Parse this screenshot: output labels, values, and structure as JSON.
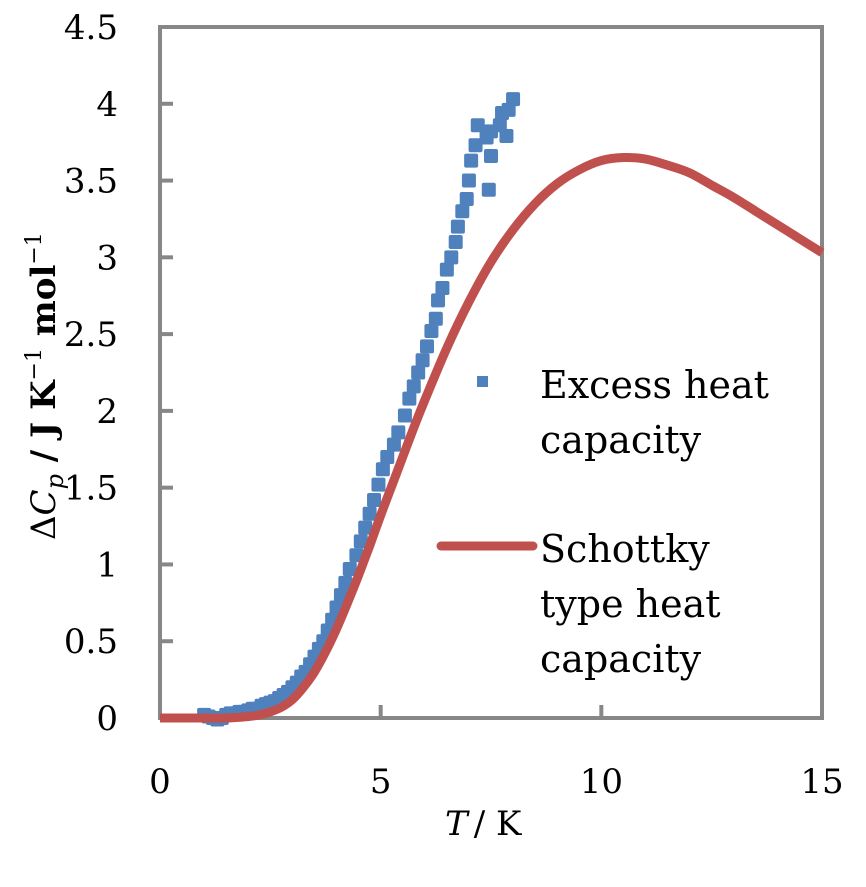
{
  "chart_data": {
    "type": "scatter",
    "title": "",
    "xlabel": "T / K",
    "xlabel_italic_part": "T",
    "xlabel_unit_part": "/ K",
    "ylabel": "ΔC_p / J K⁻¹ mol⁻¹",
    "ylabel_parts": {
      "delta": "Δ",
      "symbol": "C",
      "subscript": "p",
      "unit1": " / J K",
      "sup1": "−1",
      "unit2": " mol",
      "sup2": "−1"
    },
    "xlim": [
      0,
      15
    ],
    "ylim": [
      0,
      4.5
    ],
    "xticks": [
      0,
      5,
      10,
      15
    ],
    "xtick_labels": [
      "0",
      "5",
      "10",
      "15"
    ],
    "yticks": [
      0,
      0.5,
      1,
      1.5,
      2,
      2.5,
      3,
      3.5,
      4,
      4.5
    ],
    "ytick_labels": [
      "0",
      "0.5",
      "1",
      "1.5",
      "2",
      "2.5",
      "3",
      "3.5",
      "4",
      "4.5"
    ],
    "grid": false,
    "legend_position": "center-right",
    "series": [
      {
        "name": "Excess heat capacity",
        "legend_lines": [
          "Excess heat",
          "capacity"
        ],
        "kind": "scatter",
        "marker": "square",
        "color": "#4F81BD",
        "points": [
          [
            1.0,
            0.02
          ],
          [
            1.1,
            0.01
          ],
          [
            1.2,
            0.0
          ],
          [
            1.3,
            -0.01
          ],
          [
            1.4,
            0.0
          ],
          [
            1.5,
            0.02
          ],
          [
            1.6,
            0.03
          ],
          [
            1.7,
            0.03
          ],
          [
            1.8,
            0.04
          ],
          [
            1.9,
            0.04
          ],
          [
            2.0,
            0.05
          ],
          [
            2.1,
            0.06
          ],
          [
            2.2,
            0.06
          ],
          [
            2.3,
            0.08
          ],
          [
            2.4,
            0.09
          ],
          [
            2.5,
            0.1
          ],
          [
            2.6,
            0.11
          ],
          [
            2.7,
            0.13
          ],
          [
            2.8,
            0.15
          ],
          [
            2.9,
            0.17
          ],
          [
            3.0,
            0.2
          ],
          [
            3.1,
            0.23
          ],
          [
            3.2,
            0.27
          ],
          [
            3.3,
            0.3
          ],
          [
            3.4,
            0.35
          ],
          [
            3.5,
            0.4
          ],
          [
            3.6,
            0.45
          ],
          [
            3.7,
            0.5
          ],
          [
            3.8,
            0.57
          ],
          [
            3.9,
            0.64
          ],
          [
            4.0,
            0.72
          ],
          [
            4.1,
            0.8
          ],
          [
            4.2,
            0.88
          ],
          [
            4.3,
            0.97
          ],
          [
            4.45,
            1.06
          ],
          [
            4.55,
            1.15
          ],
          [
            4.65,
            1.24
          ],
          [
            4.75,
            1.33
          ],
          [
            4.85,
            1.42
          ],
          [
            4.95,
            1.52
          ],
          [
            5.05,
            1.62
          ],
          [
            5.15,
            1.7
          ],
          [
            5.3,
            1.78
          ],
          [
            5.4,
            1.86
          ],
          [
            5.55,
            1.97
          ],
          [
            5.65,
            2.08
          ],
          [
            5.75,
            2.16
          ],
          [
            5.85,
            2.25
          ],
          [
            5.95,
            2.33
          ],
          [
            6.05,
            2.42
          ],
          [
            6.15,
            2.52
          ],
          [
            6.25,
            2.6
          ],
          [
            6.3,
            2.72
          ],
          [
            6.4,
            2.8
          ],
          [
            6.5,
            2.92
          ],
          [
            6.6,
            3.0
          ],
          [
            6.7,
            3.1
          ],
          [
            6.75,
            3.2
          ],
          [
            6.85,
            3.3
          ],
          [
            6.95,
            3.38
          ],
          [
            7.0,
            3.5
          ],
          [
            7.05,
            3.63
          ],
          [
            7.15,
            3.73
          ],
          [
            7.2,
            3.86
          ],
          [
            7.45,
            3.44
          ],
          [
            7.5,
            3.66
          ],
          [
            7.4,
            3.78
          ],
          [
            7.5,
            3.82
          ],
          [
            7.7,
            3.86
          ],
          [
            7.75,
            3.94
          ],
          [
            7.85,
            3.79
          ],
          [
            7.9,
            3.96
          ],
          [
            8.0,
            4.03
          ]
        ]
      },
      {
        "name": "Schottky type heat capacity",
        "legend_lines": [
          "Schottky",
          "type heat",
          "capacity"
        ],
        "kind": "line",
        "color": "#C0504D",
        "points": [
          [
            0.0,
            0.0
          ],
          [
            0.5,
            0.0
          ],
          [
            1.0,
            0.0
          ],
          [
            1.5,
            0.0
          ],
          [
            2.0,
            0.01
          ],
          [
            2.25,
            0.02
          ],
          [
            2.5,
            0.04
          ],
          [
            2.75,
            0.07
          ],
          [
            3.0,
            0.12
          ],
          [
            3.25,
            0.2
          ],
          [
            3.5,
            0.3
          ],
          [
            3.75,
            0.43
          ],
          [
            4.0,
            0.58
          ],
          [
            4.25,
            0.75
          ],
          [
            4.5,
            0.93
          ],
          [
            4.75,
            1.12
          ],
          [
            5.0,
            1.32
          ],
          [
            5.25,
            1.51
          ],
          [
            5.5,
            1.7
          ],
          [
            5.75,
            1.89
          ],
          [
            6.0,
            2.07
          ],
          [
            6.5,
            2.41
          ],
          [
            7.0,
            2.71
          ],
          [
            7.5,
            2.97
          ],
          [
            8.0,
            3.18
          ],
          [
            8.5,
            3.35
          ],
          [
            9.0,
            3.48
          ],
          [
            9.5,
            3.57
          ],
          [
            10.0,
            3.63
          ],
          [
            10.5,
            3.65
          ],
          [
            11.0,
            3.64
          ],
          [
            11.5,
            3.6
          ],
          [
            12.0,
            3.55
          ],
          [
            12.5,
            3.47
          ],
          [
            13.0,
            3.39
          ],
          [
            13.5,
            3.3
          ],
          [
            14.0,
            3.21
          ],
          [
            14.5,
            3.12
          ],
          [
            15.0,
            3.03
          ]
        ]
      }
    ]
  },
  "colors": {
    "axis": "#878787",
    "scatter": "#4F81BD",
    "line": "#C0504D",
    "text": "#000000"
  }
}
